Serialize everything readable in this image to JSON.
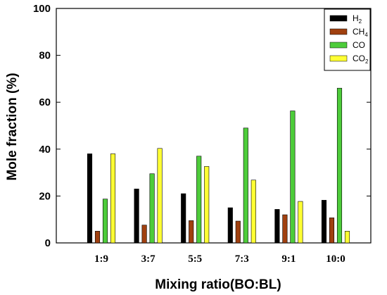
{
  "chart_data": {
    "type": "bar",
    "title": "",
    "xlabel": "Mixing ratio(BO:BL)",
    "ylabel": "Mole fraction (%)",
    "ylim": [
      0,
      100
    ],
    "yticks": [
      "0",
      "20",
      "40",
      "60",
      "80",
      "100"
    ],
    "categories": [
      "1:9",
      "3:7",
      "5:5",
      "7:3",
      "9:1",
      "10:0"
    ],
    "series": [
      {
        "name": "H",
        "sub": "2",
        "color": "#000000",
        "values": [
          38,
          23,
          21,
          15,
          14.3,
          18.2
        ]
      },
      {
        "name": "CH",
        "sub": "4",
        "color": "#a0400f",
        "values": [
          5,
          7.6,
          9.5,
          9.3,
          12,
          10.7
        ]
      },
      {
        "name": "CO",
        "sub": "",
        "color": "#4dcc3a",
        "values": [
          18.7,
          29.5,
          37,
          49,
          56.3,
          66
        ]
      },
      {
        "name": "CO",
        "sub": "2",
        "color": "#ffff33",
        "values": [
          38,
          40.3,
          32.6,
          26.8,
          17.7,
          5
        ]
      }
    ],
    "legend_position": "top-right",
    "grid": false
  }
}
